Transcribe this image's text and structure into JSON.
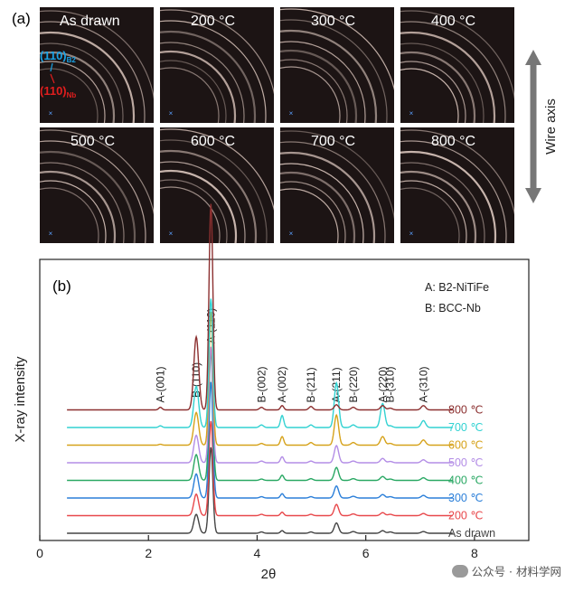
{
  "figure": {
    "panel_a_label": "(a)",
    "panel_b_label": "(b)",
    "wire_axis_label": "Wire axis",
    "tiles": [
      {
        "label": "As drawn"
      },
      {
        "label": "200 °C"
      },
      {
        "label": "300 °C"
      },
      {
        "label": "400 °C"
      },
      {
        "label": "500 °C"
      },
      {
        "label": "600 °C"
      },
      {
        "label": "700 °C"
      },
      {
        "label": "800 °C"
      }
    ],
    "tile_annotations": {
      "b2": {
        "main": "(110)",
        "sub": "B2"
      },
      "nb": {
        "main": "(110)",
        "sub": "Nb"
      }
    },
    "watermark": "公众号 · 材料学网"
  },
  "colors": {
    "b2_annotation": "#1aa3e6",
    "nb_annotation": "#e01e1e",
    "tile_background": "#1c1414",
    "ring": "#f3dcd2"
  },
  "chart_data": {
    "type": "line",
    "xlabel": "2θ",
    "ylabel": "X-ray intensity",
    "xlim": [
      0,
      9
    ],
    "x_ticks": [
      0,
      2,
      4,
      6,
      8
    ],
    "x_range": [
      0.5,
      7.6
    ],
    "legend": [
      "A: B2-NiTiFe",
      "B: BCC-Nb"
    ],
    "legend_position": "top-right",
    "peak_positions": [
      {
        "label": "A-(001)",
        "x": 2.22
      },
      {
        "label": "B-(110)",
        "x": 2.88
      },
      {
        "label": "A-(110)",
        "x": 3.15
      },
      {
        "label": "B-(002)",
        "x": 4.08
      },
      {
        "label": "A-(002)",
        "x": 4.46
      },
      {
        "label": "B-(211)",
        "x": 4.99
      },
      {
        "label": "A-(211)",
        "x": 5.46
      },
      {
        "label": "B-(220)",
        "x": 5.77
      },
      {
        "label": "A-(220)",
        "x": 6.31
      },
      {
        "label": "B-(310)",
        "x": 6.45
      },
      {
        "label": "A-(310)",
        "x": 7.06
      }
    ],
    "peak_widths": [
      0.03,
      0.045,
      0.035,
      0.035,
      0.03,
      0.035,
      0.04,
      0.04,
      0.04,
      0.04,
      0.04
    ],
    "series": [
      {
        "name": "As drawn",
        "color": "#444444",
        "peaks": [
          0,
          0.22,
          1.0,
          0.015,
          0.03,
          0.015,
          0.12,
          0.02,
          0.03,
          0.015,
          0.02
        ]
      },
      {
        "name": "200 ℃",
        "color": "#e8484b",
        "peaks": [
          0,
          0.25,
          1.1,
          0.015,
          0.04,
          0.015,
          0.13,
          0.02,
          0.035,
          0.015,
          0.025
        ]
      },
      {
        "name": "300 ℃",
        "color": "#2b7fd9",
        "peaks": [
          0,
          0.28,
          1.35,
          0.015,
          0.05,
          0.015,
          0.14,
          0.02,
          0.04,
          0.015,
          0.03
        ]
      },
      {
        "name": "400 ℃",
        "color": "#2aa864",
        "peaks": [
          0,
          0.3,
          1.5,
          0.015,
          0.06,
          0.02,
          0.15,
          0.02,
          0.045,
          0.015,
          0.03
        ]
      },
      {
        "name": "500 ℃",
        "color": "#b38de6",
        "peaks": [
          0,
          0.32,
          1.35,
          0.02,
          0.07,
          0.02,
          0.2,
          0.02,
          0.05,
          0.015,
          0.035
        ]
      },
      {
        "name": "600 ℃",
        "color": "#d6a21a",
        "peaks": [
          0.01,
          0.38,
          1.55,
          0.02,
          0.1,
          0.03,
          0.35,
          0.03,
          0.1,
          0.02,
          0.06
        ]
      },
      {
        "name": "700 ℃",
        "color": "#32d2d2",
        "peaks": [
          0.02,
          0.48,
          1.5,
          0.03,
          0.14,
          0.03,
          0.52,
          0.03,
          0.28,
          0.02,
          0.08
        ]
      },
      {
        "name": "800 ℃",
        "color": "#8c3030",
        "peaks": [
          0.03,
          0.85,
          2.4,
          0.03,
          0.05,
          0.04,
          0.06,
          0.03,
          0.05,
          0.02,
          0.05
        ]
      }
    ]
  }
}
